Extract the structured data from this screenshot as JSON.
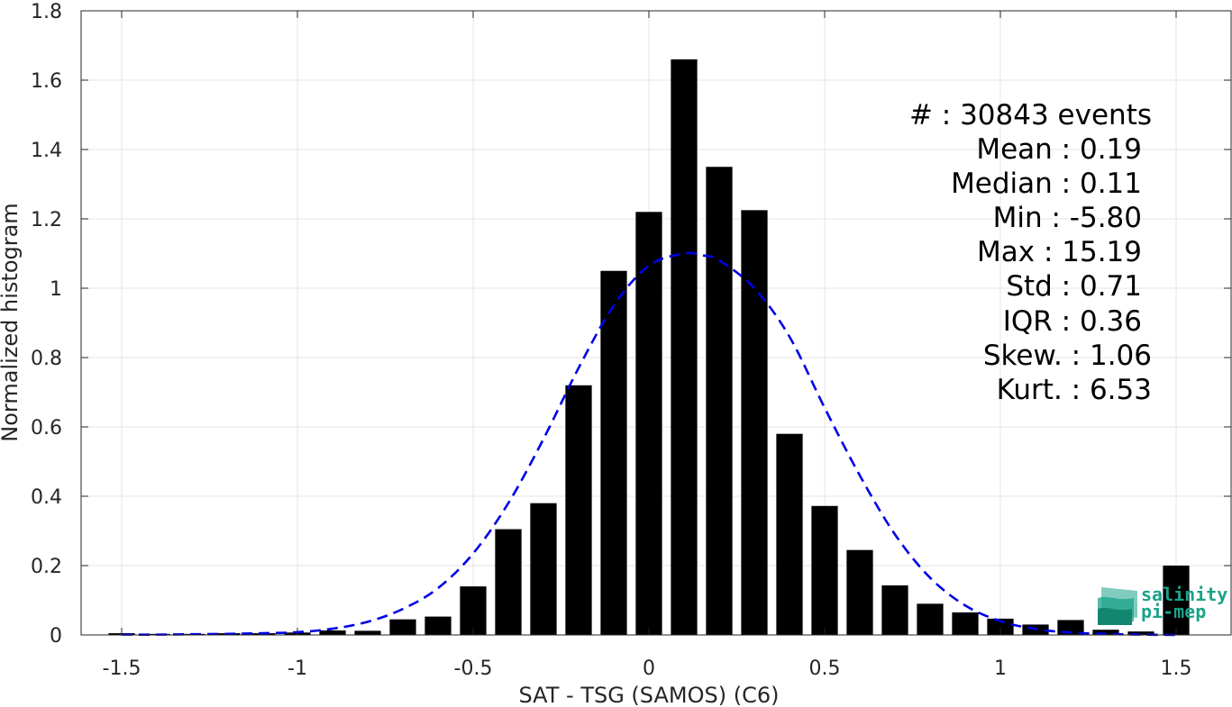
{
  "chart_data": {
    "type": "bar",
    "xlabel": "SAT - TSG (SAMOS) (C6)",
    "ylabel": "Normalized histogram",
    "xlim": [
      -1.6,
      1.6
    ],
    "ylim": [
      0,
      1.8
    ],
    "grid": true,
    "bar_width": 0.075,
    "x_ticks": [
      -1.5,
      -1,
      -0.5,
      0,
      0.5,
      1,
      1.5
    ],
    "x_tick_labels": [
      "-1.5",
      "-1",
      "-0.5",
      "0",
      "0.5",
      "1",
      "1.5"
    ],
    "y_ticks": [
      0,
      0.2,
      0.4,
      0.6,
      0.8,
      1,
      1.2,
      1.4,
      1.6,
      1.8
    ],
    "y_tick_labels": [
      "0",
      "0.2",
      "0.4",
      "0.6",
      "0.8",
      "1",
      "1.2",
      "1.4",
      "1.6",
      "1.8"
    ],
    "bars": {
      "x": [
        -1.5,
        -1.4,
        -1.3,
        -1.2,
        -1.1,
        -1.0,
        -0.9,
        -0.8,
        -0.7,
        -0.6,
        -0.5,
        -0.4,
        -0.3,
        -0.2,
        -0.1,
        0.0,
        0.1,
        0.2,
        0.3,
        0.4,
        0.5,
        0.6,
        0.7,
        0.8,
        0.9,
        1.0,
        1.1,
        1.2,
        1.3,
        1.4,
        1.5
      ],
      "values": [
        0.005,
        0.003,
        0.003,
        0.005,
        0.005,
        0.007,
        0.013,
        0.012,
        0.045,
        0.053,
        0.14,
        0.305,
        0.38,
        0.72,
        1.05,
        1.22,
        1.66,
        1.35,
        1.225,
        0.58,
        0.372,
        0.245,
        0.143,
        0.09,
        0.065,
        0.047,
        0.03,
        0.043,
        0.015,
        0.01,
        0.2
      ]
    },
    "fit_curve": {
      "name": "",
      "style": "dashed",
      "color": "#0000e6",
      "x": [
        -1.5,
        -1.4,
        -1.3,
        -1.2,
        -1.1,
        -1.0,
        -0.9,
        -0.8,
        -0.7,
        -0.6,
        -0.5,
        -0.4,
        -0.3,
        -0.2,
        -0.1,
        0.0,
        0.1,
        0.15,
        0.2,
        0.3,
        0.4,
        0.5,
        0.6,
        0.7,
        0.8,
        0.9,
        1.0,
        1.1,
        1.2,
        1.3,
        1.4,
        1.5
      ],
      "values": [
        0.001,
        0.001,
        0.002,
        0.003,
        0.005,
        0.008,
        0.018,
        0.038,
        0.075,
        0.135,
        0.235,
        0.38,
        0.565,
        0.77,
        0.95,
        1.065,
        1.1,
        1.095,
        1.08,
        1.0,
        0.86,
        0.655,
        0.46,
        0.29,
        0.165,
        0.085,
        0.04,
        0.017,
        0.007,
        0.003,
        0.001,
        0.0
      ]
    },
    "bar_color": "#000000"
  },
  "stats": [
    {
      "label": "#  : 30843 events"
    },
    {
      "label": "Mean : 0.19"
    },
    {
      "label": "Median : 0.11"
    },
    {
      "label": "Min : -5.80"
    },
    {
      "label": "Max : 15.19"
    },
    {
      "label": "Std : 0.71"
    },
    {
      "label": "IQR : 0.36"
    },
    {
      "label": "Skew. : 1.06"
    },
    {
      "label": "Kurt. : 6.53"
    }
  ],
  "logo": {
    "line1": "salinity",
    "line2": "pi-mep",
    "color": "#1aa38a"
  }
}
